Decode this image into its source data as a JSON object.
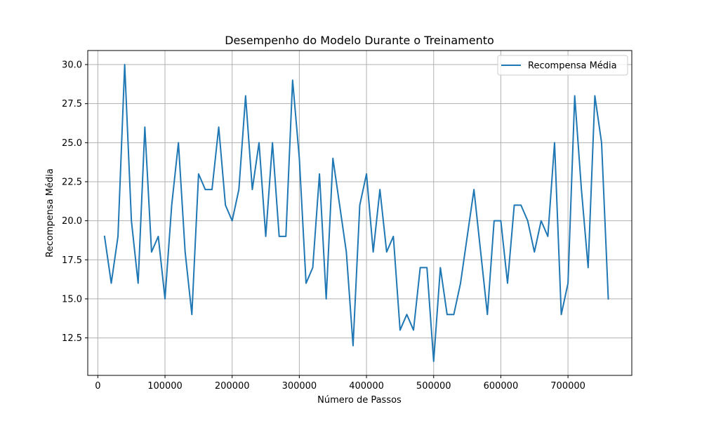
{
  "chart_data": {
    "type": "line",
    "title": "Desempenho do Modelo Durante o Treinamento",
    "xlabel": "Número de Passos",
    "ylabel": "Recompensa Média",
    "xlim": [
      -15000,
      795000
    ],
    "ylim": [
      10.1,
      30.9
    ],
    "xticks": [
      0,
      100000,
      200000,
      300000,
      400000,
      500000,
      600000,
      700000
    ],
    "xtick_labels": [
      "0",
      "100000",
      "200000",
      "300000",
      "400000",
      "500000",
      "600000",
      "700000"
    ],
    "yticks": [
      12.5,
      15.0,
      17.5,
      20.0,
      22.5,
      25.0,
      27.5,
      30.0
    ],
    "ytick_labels": [
      "12.5",
      "15.0",
      "17.5",
      "20.0",
      "22.5",
      "25.0",
      "27.5",
      "30.0"
    ],
    "grid": true,
    "legend_position": "top-right",
    "series": [
      {
        "name": "Recompensa Média",
        "color": "#1f77b4",
        "x": [
          10000,
          20000,
          30000,
          40000,
          50000,
          60000,
          70000,
          80000,
          90000,
          100000,
          110000,
          120000,
          130000,
          140000,
          150000,
          160000,
          170000,
          180000,
          190000,
          200000,
          210000,
          220000,
          230000,
          240000,
          250000,
          260000,
          270000,
          280000,
          290000,
          300000,
          310000,
          320000,
          330000,
          340000,
          350000,
          360000,
          370000,
          380000,
          390000,
          400000,
          410000,
          420000,
          430000,
          440000,
          450000,
          460000,
          470000,
          480000,
          490000,
          500000,
          510000,
          520000,
          530000,
          540000,
          550000,
          560000,
          570000,
          580000,
          590000,
          600000,
          610000,
          620000,
          630000,
          640000,
          650000,
          660000,
          670000,
          680000,
          690000,
          700000,
          710000,
          720000,
          730000,
          740000,
          750000,
          760000
        ],
        "y": [
          19,
          16,
          19,
          30,
          20,
          16,
          26,
          18,
          19,
          15,
          21,
          25,
          18,
          14,
          23,
          22,
          22,
          26,
          21,
          20,
          22,
          28,
          22,
          25,
          19,
          25,
          19,
          19,
          29,
          24,
          16,
          17,
          23,
          15,
          24,
          21,
          18,
          12,
          21,
          23,
          18,
          22,
          18,
          19,
          13,
          14,
          13,
          17,
          17,
          11,
          17,
          14,
          14,
          16,
          19,
          22,
          18,
          14,
          20,
          20,
          16,
          21,
          21,
          20,
          18,
          20,
          19,
          25,
          14,
          16,
          28,
          22,
          17,
          28,
          25,
          15
        ]
      }
    ]
  }
}
